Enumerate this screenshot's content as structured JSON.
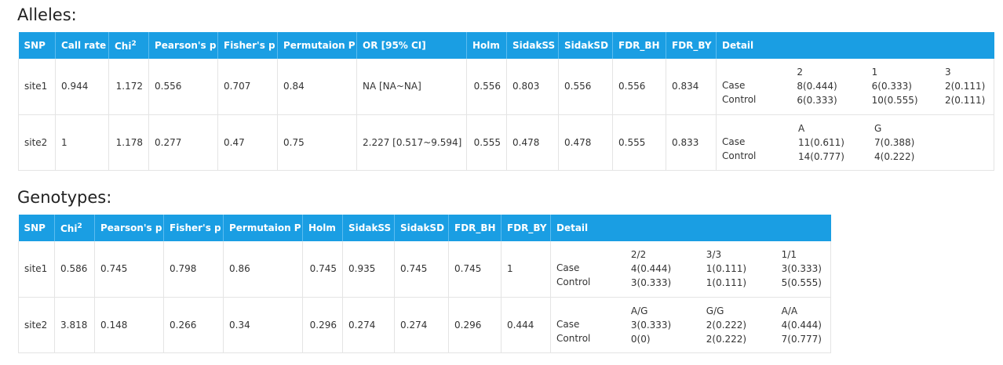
{
  "alleles": {
    "title": "Alleles:",
    "headers": [
      "SNP",
      "Call rate",
      "Chi",
      "Pearson's p",
      "Fisher's p",
      "Permutaion P",
      "OR [95% CI]",
      "Holm",
      "SidakSS",
      "SidakSD",
      "FDR_BH",
      "FDR_BY",
      "Detail"
    ],
    "chi_sup": "2",
    "rows": [
      {
        "snp": "site1",
        "call_rate": "0.944",
        "chi": "1.172",
        "pearson": "0.556",
        "fisher": "0.707",
        "perm": "0.84",
        "or": "NA [NA~NA]",
        "holm": "0.556",
        "sidakss": "0.803",
        "sidaksd": "0.556",
        "fdr_bh": "0.556",
        "fdr_by": "0.834",
        "detail": {
          "case_label": "Case",
          "control_label": "Control",
          "cols": [
            {
              "head": "2",
              "case": "8(0.444)",
              "control": "6(0.333)"
            },
            {
              "head": "1",
              "case": "6(0.333)",
              "control": "10(0.555)"
            },
            {
              "head": "3",
              "case": "2(0.111)",
              "control": "2(0.111)"
            }
          ]
        }
      },
      {
        "snp": "site2",
        "call_rate": "1",
        "chi": "1.178",
        "pearson": "0.277",
        "fisher": "0.47",
        "perm": "0.75",
        "or": "2.227 [0.517~9.594]",
        "holm": "0.555",
        "sidakss": "0.478",
        "sidaksd": "0.478",
        "fdr_bh": "0.555",
        "fdr_by": "0.833",
        "detail": {
          "case_label": "Case",
          "control_label": "Control",
          "cols": [
            {
              "head": "A",
              "case": "11(0.611)",
              "control": "14(0.777)"
            },
            {
              "head": "G",
              "case": "7(0.388)",
              "control": "4(0.222)"
            }
          ]
        }
      }
    ]
  },
  "genotypes": {
    "title": "Genotypes:",
    "headers": [
      "SNP",
      "Chi",
      "Pearson's p",
      "Fisher's p",
      "Permutaion P",
      "Holm",
      "SidakSS",
      "SidakSD",
      "FDR_BH",
      "FDR_BY",
      "Detail"
    ],
    "chi_sup": "2",
    "rows": [
      {
        "snp": "site1",
        "chi": "0.586",
        "pearson": "0.745",
        "fisher": "0.798",
        "perm": "0.86",
        "holm": "0.745",
        "sidakss": "0.935",
        "sidaksd": "0.745",
        "fdr_bh": "0.745",
        "fdr_by": "1",
        "detail": {
          "case_label": "Case",
          "control_label": "Control",
          "cols": [
            {
              "head": "2/2",
              "case": "4(0.444)",
              "control": "3(0.333)"
            },
            {
              "head": "3/3",
              "case": "1(0.111)",
              "control": "1(0.111)"
            },
            {
              "head": "1/1",
              "case": "3(0.333)",
              "control": "5(0.555)"
            }
          ]
        }
      },
      {
        "snp": "site2",
        "chi": "3.818",
        "pearson": "0.148",
        "fisher": "0.266",
        "perm": "0.34",
        "holm": "0.296",
        "sidakss": "0.274",
        "sidaksd": "0.274",
        "fdr_bh": "0.296",
        "fdr_by": "0.444",
        "detail": {
          "case_label": "Case",
          "control_label": "Control",
          "cols": [
            {
              "head": "A/G",
              "case": "3(0.333)",
              "control": "0(0)"
            },
            {
              "head": "G/G",
              "case": "2(0.222)",
              "control": "2(0.222)"
            },
            {
              "head": "A/A",
              "case": "4(0.444)",
              "control": "7(0.777)"
            }
          ]
        }
      }
    ]
  }
}
